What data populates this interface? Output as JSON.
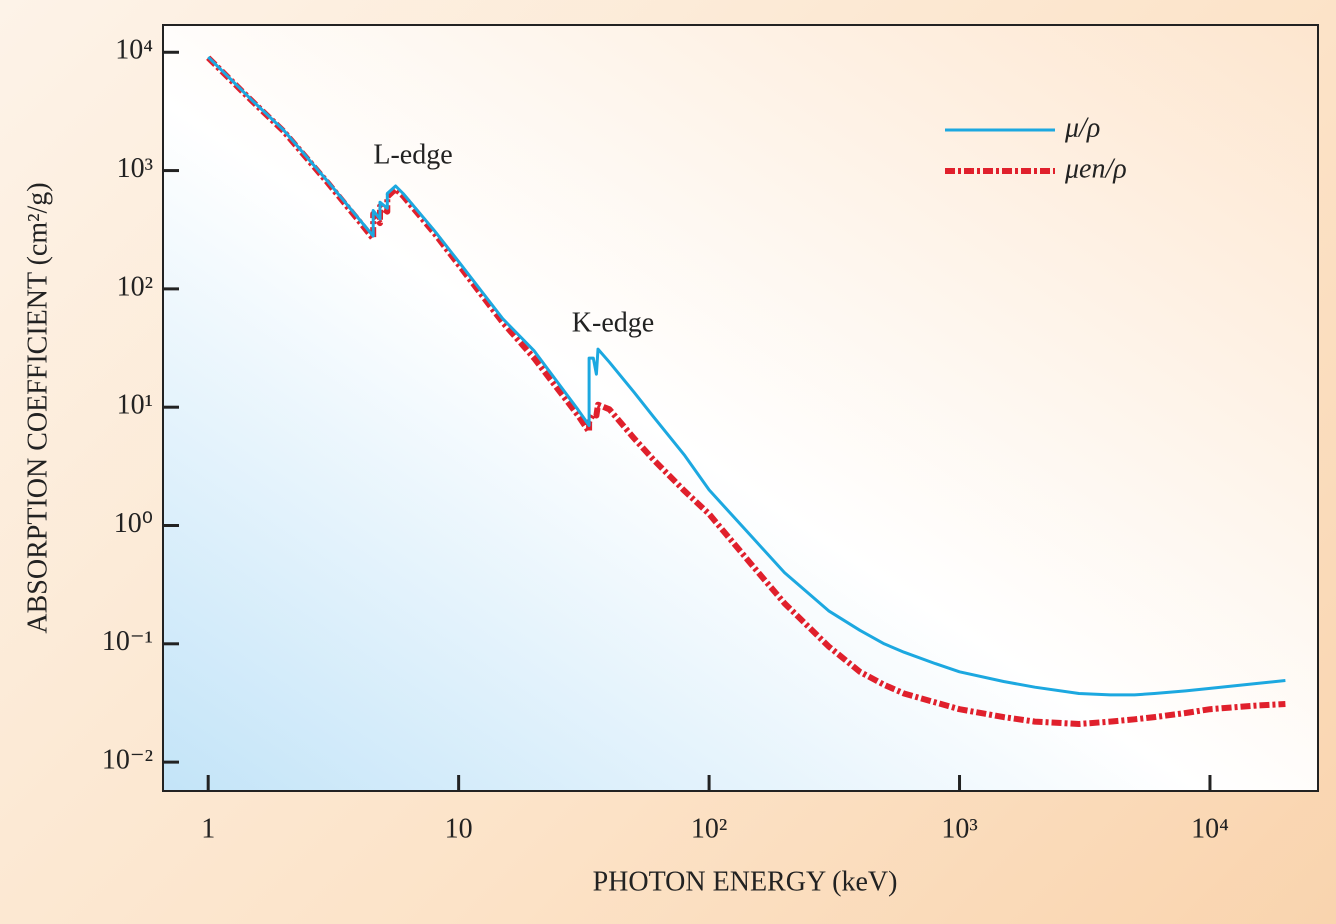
{
  "chart_data": {
    "type": "line",
    "x_label": "PHOTON ENERGY (keV)",
    "y_label": "ABSORPTION COEFFICIENT (cm²/g)",
    "annotations": [
      "L-edge",
      "K-edge"
    ],
    "log_x": true,
    "log_y": true,
    "legend": "upper right",
    "xlim": [
      0.66,
      27000
    ],
    "ylim": [
      0.0057,
      17000
    ],
    "xticks": [
      1,
      10,
      {
        "value": 100,
        "label": "10²"
      },
      {
        "value": 1000,
        "label": "10³"
      },
      {
        "value": 10000,
        "label": "10⁴"
      }
    ],
    "yticks": [
      {
        "value": 0.01,
        "label": "10⁻²"
      },
      {
        "value": 0.1,
        "label": "10⁻¹"
      },
      {
        "value": 1,
        "label": "10⁰"
      },
      {
        "value": 10,
        "label": "10¹"
      },
      {
        "value": 100,
        "label": "10²"
      },
      {
        "value": 1000,
        "label": "10³"
      },
      {
        "value": 10000,
        "label": "10⁴"
      }
    ],
    "x": [
      1,
      1.5,
      2,
      3,
      4,
      4.557,
      4.557,
      4.852,
      4.852,
      5.188,
      5.188,
      5.6,
      6,
      8,
      10,
      15,
      20,
      30,
      33.17,
      33.17,
      34.5,
      35.5,
      36,
      40,
      50,
      60,
      80,
      100,
      150,
      200,
      300,
      400,
      500,
      600,
      800,
      1000,
      1500,
      2000,
      3000,
      4000,
      5000,
      6000,
      8000,
      10000,
      15000,
      20000
    ],
    "series": [
      {
        "name": "μen/ρ",
        "color": "#e0202c",
        "style": "dashdot",
        "values": [
          9000,
          3850,
          2150,
          790,
          375,
          265,
          430,
          360,
          500,
          450,
          600,
          700,
          610,
          295,
          160,
          52,
          26,
          8.5,
          6.2,
          7.5,
          8.8,
          8.5,
          10.5,
          9.6,
          5.5,
          3.6,
          1.95,
          1.25,
          0.45,
          0.22,
          0.095,
          0.058,
          0.045,
          0.038,
          0.032,
          0.028,
          0.024,
          0.022,
          0.021,
          0.022,
          0.023,
          0.024,
          0.026,
          0.028,
          0.03,
          0.031
        ]
      },
      {
        "name": "μ/ρ",
        "color": "#1ca8e0",
        "style": "solid",
        "values": [
          9100,
          3900,
          2200,
          810,
          390,
          280,
          460,
          390,
          540,
          480,
          640,
          740,
          640,
          310,
          170,
          56,
          30,
          9.5,
          7.0,
          26,
          26,
          19,
          31,
          24,
          13.5,
          8.3,
          3.9,
          2.0,
          0.78,
          0.4,
          0.19,
          0.13,
          0.1,
          0.085,
          0.068,
          0.058,
          0.048,
          0.043,
          0.038,
          0.037,
          0.037,
          0.038,
          0.04,
          0.042,
          0.046,
          0.049
        ]
      }
    ]
  }
}
